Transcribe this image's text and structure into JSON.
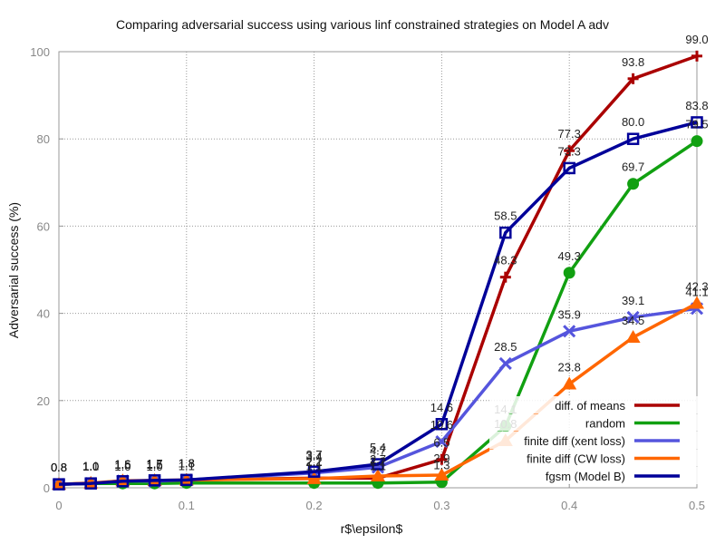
{
  "chart_data": {
    "type": "line",
    "title": "Comparing adversarial success using various linf constrained strategies on Model A adv",
    "xlabel": "r$\\epsilon$",
    "ylabel": "Adversarial success (%)",
    "xlim": [
      0,
      0.5
    ],
    "ylim": [
      0,
      100
    ],
    "xticks": [
      0,
      0.1,
      0.2,
      0.3,
      0.4,
      0.5
    ],
    "xtick_labels": [
      "0",
      "0.1",
      "0.2",
      "0.3",
      "0.4",
      "0.5"
    ],
    "yticks": [
      0,
      20,
      40,
      60,
      80,
      100
    ],
    "ytick_labels": [
      "0",
      "20",
      "40",
      "60",
      "80",
      "100"
    ],
    "grid": true,
    "legend_position": "bottom-right",
    "series": [
      {
        "name": "diff. of means",
        "color": "#aa0000",
        "marker": "plus",
        "x": [
          0,
          0.025,
          0.05,
          0.075,
          0.1,
          0.2,
          0.25,
          0.3,
          0.35,
          0.4,
          0.45,
          0.5
        ],
        "y": [
          0.8,
          1.0,
          1.5,
          1.5,
          1.8,
          2.2,
          2.2,
          6.5,
          48.3,
          77.3,
          93.8,
          99.0
        ],
        "labels": [
          "0.8",
          "1.0",
          "1.5",
          "1.5",
          "1.8",
          "2.2",
          "2.2",
          "6.5",
          "48.3",
          "77.3",
          "93.8",
          "99.0"
        ]
      },
      {
        "name": "random",
        "color": "#11a011",
        "marker": "circle",
        "x": [
          0,
          0.025,
          0.05,
          0.075,
          0.1,
          0.2,
          0.25,
          0.3,
          0.35,
          0.4,
          0.45,
          0.5
        ],
        "y": [
          0.8,
          1.0,
          1.0,
          1.0,
          1.1,
          1.1,
          1.1,
          1.3,
          14.1,
          49.3,
          69.7,
          79.5
        ],
        "labels": [
          "0.8",
          "1.0",
          "1.0",
          "1.0",
          "1.1",
          "1.1",
          "1.1",
          "1.3",
          "14.1",
          "49.3",
          "69.7",
          "79.5"
        ]
      },
      {
        "name": "finite diff (xent loss)",
        "color": "#5555dd",
        "marker": "cross",
        "x": [
          0,
          0.025,
          0.05,
          0.075,
          0.1,
          0.2,
          0.25,
          0.3,
          0.35,
          0.4,
          0.45,
          0.5
        ],
        "y": [
          0.8,
          1.0,
          1.6,
          1.5,
          1.8,
          3.4,
          4.7,
          10.6,
          28.5,
          35.9,
          39.1,
          41.1
        ],
        "labels": [
          "0.8",
          "1.0",
          "1.6",
          "1.5",
          "1.8",
          "3.4",
          "4.7",
          "10.6",
          "28.5",
          "35.9",
          "39.1",
          "41.1"
        ]
      },
      {
        "name": "finite diff (CW loss)",
        "color": "#ff6600",
        "marker": "triangle",
        "x": [
          0,
          0.025,
          0.05,
          0.075,
          0.1,
          0.2,
          0.25,
          0.3,
          0.35,
          0.4,
          0.45,
          0.5
        ],
        "y": [
          0.8,
          1.1,
          1.6,
          1.7,
          1.8,
          2.1,
          2.7,
          2.9,
          10.8,
          23.8,
          34.5,
          42.3
        ],
        "labels": [
          "0.8",
          "1.1",
          "1.6",
          "1.7",
          "1.8",
          "2.1",
          "2.7",
          "2.9",
          "10.8",
          "23.8",
          "34.5",
          "42.3"
        ]
      },
      {
        "name": "fgsm (Model B)",
        "color": "#000099",
        "marker": "square",
        "x": [
          0,
          0.025,
          0.05,
          0.075,
          0.1,
          0.2,
          0.25,
          0.3,
          0.35,
          0.4,
          0.45,
          0.5
        ],
        "y": [
          0.8,
          1.0,
          1.5,
          1.7,
          1.8,
          3.7,
          5.4,
          14.6,
          58.5,
          73.3,
          80.0,
          83.8
        ],
        "labels": [
          "0.8",
          "1.0",
          "1.5",
          "1.7",
          "1.8",
          "3.7",
          "5.4",
          "14.6",
          "58.5",
          "73.3",
          "80.0",
          "83.8"
        ]
      }
    ]
  }
}
